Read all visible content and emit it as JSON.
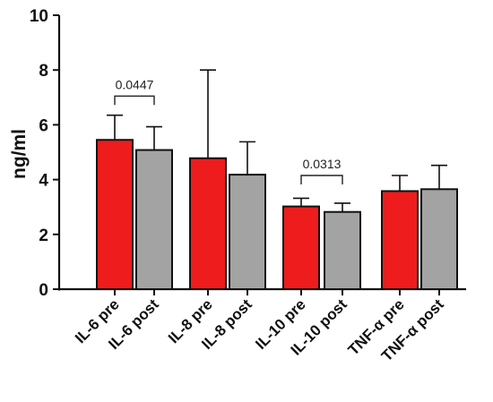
{
  "chart_data": {
    "type": "bar",
    "title": "",
    "xlabel": "",
    "ylabel": "ng/ml",
    "ylim": [
      0,
      10
    ],
    "yticks": [
      "0",
      "2",
      "4",
      "6",
      "8",
      "10"
    ],
    "grid": false,
    "categories": [
      "IL-6 pre",
      "IL-6 post",
      "IL-8 pre",
      "IL-8 post",
      "IL-10 pre",
      "IL-10 post",
      "TNF-α pre",
      "TNF-α post"
    ],
    "values": [
      5.45,
      5.08,
      4.78,
      4.18,
      3.02,
      2.82,
      3.58,
      3.65
    ],
    "errors": [
      0.9,
      0.85,
      3.22,
      1.2,
      0.3,
      0.32,
      0.57,
      0.87
    ],
    "bar_colors": [
      "#ee1c1c",
      "#a3a3a3",
      "#ee1c1c",
      "#a3a3a3",
      "#ee1c1c",
      "#a3a3a3",
      "#ee1c1c",
      "#a3a3a3"
    ],
    "annotations": [
      {
        "from": 0,
        "to": 1,
        "text": "0.0447",
        "bracket_y": 7.05
      },
      {
        "from": 4,
        "to": 5,
        "text": "0.0313",
        "bracket_y": 4.15
      }
    ]
  }
}
